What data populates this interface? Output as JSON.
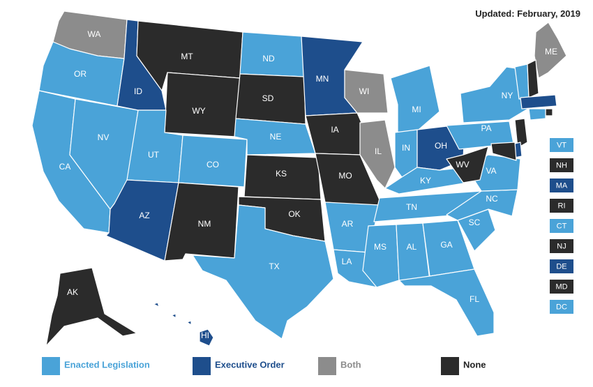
{
  "updated_text": "Updated: February, 2019",
  "categories": {
    "enacted": {
      "label": "Enacted Legislation",
      "color": "#4aa3d8"
    },
    "exec": {
      "label": "Executive Order",
      "color": "#1e4e8c"
    },
    "both": {
      "label": "Both",
      "color": "#8c8c8c"
    },
    "none": {
      "label": "None",
      "color": "#2b2b2b"
    }
  },
  "legend_order": [
    "enacted",
    "exec",
    "both",
    "none"
  ],
  "legend_text_colors": {
    "enacted": "#4aa3d8",
    "exec": "#1e4e8c",
    "both": "#8c8c8c",
    "none": "#222222"
  },
  "states": [
    {
      "abbr": "WA",
      "status": "both"
    },
    {
      "abbr": "OR",
      "status": "enacted"
    },
    {
      "abbr": "CA",
      "status": "enacted"
    },
    {
      "abbr": "NV",
      "status": "enacted"
    },
    {
      "abbr": "ID",
      "status": "exec"
    },
    {
      "abbr": "MT",
      "status": "none"
    },
    {
      "abbr": "WY",
      "status": "none"
    },
    {
      "abbr": "UT",
      "status": "enacted"
    },
    {
      "abbr": "CO",
      "status": "enacted"
    },
    {
      "abbr": "AZ",
      "status": "exec"
    },
    {
      "abbr": "NM",
      "status": "none"
    },
    {
      "abbr": "ND",
      "status": "enacted"
    },
    {
      "abbr": "SD",
      "status": "none"
    },
    {
      "abbr": "NE",
      "status": "enacted"
    },
    {
      "abbr": "KS",
      "status": "none"
    },
    {
      "abbr": "OK",
      "status": "none"
    },
    {
      "abbr": "TX",
      "status": "enacted"
    },
    {
      "abbr": "MN",
      "status": "exec"
    },
    {
      "abbr": "IA",
      "status": "none"
    },
    {
      "abbr": "MO",
      "status": "none"
    },
    {
      "abbr": "AR",
      "status": "enacted"
    },
    {
      "abbr": "LA",
      "status": "enacted"
    },
    {
      "abbr": "WI",
      "status": "both"
    },
    {
      "abbr": "IL",
      "status": "both"
    },
    {
      "abbr": "MI",
      "status": "enacted"
    },
    {
      "abbr": "IN",
      "status": "enacted"
    },
    {
      "abbr": "OH",
      "status": "exec"
    },
    {
      "abbr": "KY",
      "status": "enacted"
    },
    {
      "abbr": "TN",
      "status": "enacted"
    },
    {
      "abbr": "MS",
      "status": "enacted"
    },
    {
      "abbr": "AL",
      "status": "enacted"
    },
    {
      "abbr": "GA",
      "status": "enacted"
    },
    {
      "abbr": "FL",
      "status": "enacted"
    },
    {
      "abbr": "SC",
      "status": "enacted"
    },
    {
      "abbr": "NC",
      "status": "enacted"
    },
    {
      "abbr": "VA",
      "status": "enacted"
    },
    {
      "abbr": "WV",
      "status": "none"
    },
    {
      "abbr": "PA",
      "status": "enacted"
    },
    {
      "abbr": "NY",
      "status": "enacted"
    },
    {
      "abbr": "ME",
      "status": "both"
    },
    {
      "abbr": "AK",
      "status": "none"
    },
    {
      "abbr": "HI",
      "status": "exec"
    }
  ],
  "small_states": [
    {
      "abbr": "VT",
      "status": "enacted"
    },
    {
      "abbr": "NH",
      "status": "none"
    },
    {
      "abbr": "MA",
      "status": "exec"
    },
    {
      "abbr": "RI",
      "status": "none"
    },
    {
      "abbr": "CT",
      "status": "enacted"
    },
    {
      "abbr": "NJ",
      "status": "none"
    },
    {
      "abbr": "DE",
      "status": "exec"
    },
    {
      "abbr": "MD",
      "status": "none"
    },
    {
      "abbr": "DC",
      "status": "enacted"
    }
  ]
}
